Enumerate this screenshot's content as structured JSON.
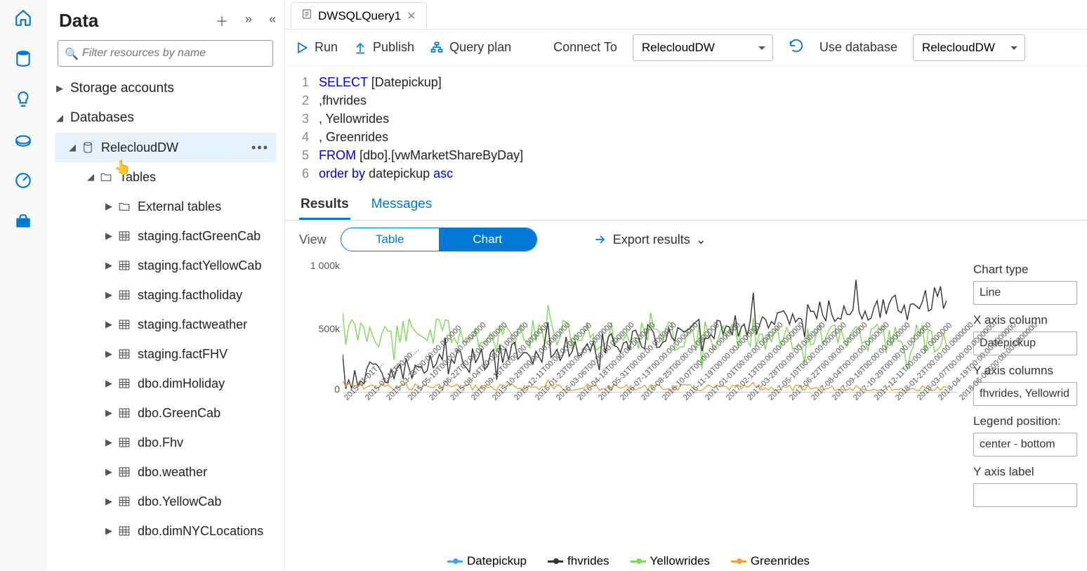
{
  "rail_icons": [
    "home",
    "database",
    "lightbulb",
    "pool",
    "gauge",
    "toolbox"
  ],
  "sidebar": {
    "title": "Data",
    "filter_placeholder": "Filter resources by name",
    "storage_label": "Storage accounts",
    "databases_label": "Databases",
    "selected_db": "RelecloudDW",
    "tables_label": "Tables",
    "external_label": "External tables",
    "tables": [
      "staging.factGreenCab",
      "staging.factYellowCab",
      "staging.factholiday",
      "staging.factweather",
      "staging.factFHV",
      "dbo.dimHoliday",
      "dbo.GreenCab",
      "dbo.Fhv",
      "dbo.weather",
      "dbo.YellowCab",
      "dbo.dimNYCLocations"
    ]
  },
  "tab": {
    "name": "DWSQLQuery1"
  },
  "toolbar": {
    "run": "Run",
    "publish": "Publish",
    "queryplan": "Query plan",
    "connect_label": "Connect To",
    "connect_value": "RelecloudDW",
    "usedb_label": "Use database",
    "usedb_value": "RelecloudDW"
  },
  "code": {
    "lines": [
      {
        "n": "1",
        "pre": "",
        "kw": "SELECT",
        "rest": " [Datepickup]"
      },
      {
        "n": "2",
        "pre": ",fhvrides",
        "kw": "",
        "rest": ""
      },
      {
        "n": "3",
        "pre": ", Yellowrides",
        "kw": "",
        "rest": ""
      },
      {
        "n": "4",
        "pre": ", Greenrides",
        "kw": "",
        "rest": ""
      },
      {
        "n": "5",
        "pre": "",
        "kw": "FROM",
        "rest": " [dbo].[vwMarketShareByDay]"
      },
      {
        "n": "6",
        "pre": "",
        "kw": "order by",
        "rest": " datepickup ",
        "kw2": "asc"
      }
    ]
  },
  "results": {
    "tab_results": "Results",
    "tab_messages": "Messages",
    "view_label": "View",
    "seg_table": "Table",
    "seg_chart": "Chart",
    "export_label": "Export results"
  },
  "chart": {
    "ylabels": [
      {
        "v": "1 000k",
        "y": 10
      },
      {
        "v": "500k",
        "y": 100
      },
      {
        "v": "0",
        "y": 186
      }
    ],
    "xticks": [
      "2015-01-01T ...",
      "2015-02-13T00:00:...",
      "2015-03-28T00:00:00.000000",
      "2015-05-10T00:00:00.0000000",
      "2015-06-22T00:00:00.0000000",
      "2015-08-04T00:00:00.0000000",
      "2015-09-16T00:00:00.0000000",
      "2015-10-29T00:00:00.0000000",
      "2015-12-11T00:00:00.0000000",
      "2016-01-23T00:00:00.0000000",
      "2016-03-06T00:00:00.0000000",
      "2016-04-18T00:00:00.0000000",
      "2016-05-31T00:00:00.0000000",
      "2016-07-13T00:00:00.0000000",
      "2016-08-25T00:00:00.0000000",
      "2016-10-07T00:00:00.0000000",
      "2016-11-19T00:00:00.0000000",
      "2017-01-01T00:00:00.0000000",
      "2017-02-13T00:00:00.0000000",
      "2017-03-28T00:00:00.0000000",
      "2017-05-10T00:00:00.0000000",
      "2017-06-22T00:00:00.0000000",
      "2017-08-04T00:00:00.0000000",
      "2017-09-16T00:00:00.0000000",
      "2017-10-29T00:00:00.0000000",
      "2017-12-11T00:00:00.0000000",
      "2018-01-23T00:00:00.0000000",
      "2018-03-07T00:00:00.0000000",
      "2018-04-19T00:00:00.0000000",
      "2018-06-01T00:00:00.0000000"
    ],
    "legend": [
      {
        "label": "Datepickup",
        "color": "#4aa3df"
      },
      {
        "label": "fhvrides",
        "color": "#333333"
      },
      {
        "label": "Yellowrides",
        "color": "#7ed957"
      },
      {
        "label": "Greenrides",
        "color": "#e8a33d"
      }
    ],
    "series": {
      "green_yellow": {
        "color": "#7ed957",
        "base": 95,
        "amp": 22,
        "drift": 10
      },
      "black_fhv": {
        "color": "#333333",
        "base": 160,
        "amp": 18,
        "drift": -115
      },
      "orange_green": {
        "color": "#e8a33d",
        "base": 172,
        "amp": 5,
        "drift": 4
      }
    },
    "options": {
      "type_label": "Chart type",
      "type_value": "Line",
      "xcol_label": "X axis column",
      "xcol_value": "Datepickup",
      "ycol_label": "Y axis columns",
      "ycol_value": "fhvrides, Yellowrid",
      "legend_label": "Legend position:",
      "legend_value": "center - bottom",
      "ylabel_label": "Y axis label",
      "ylabel_value": ""
    }
  }
}
